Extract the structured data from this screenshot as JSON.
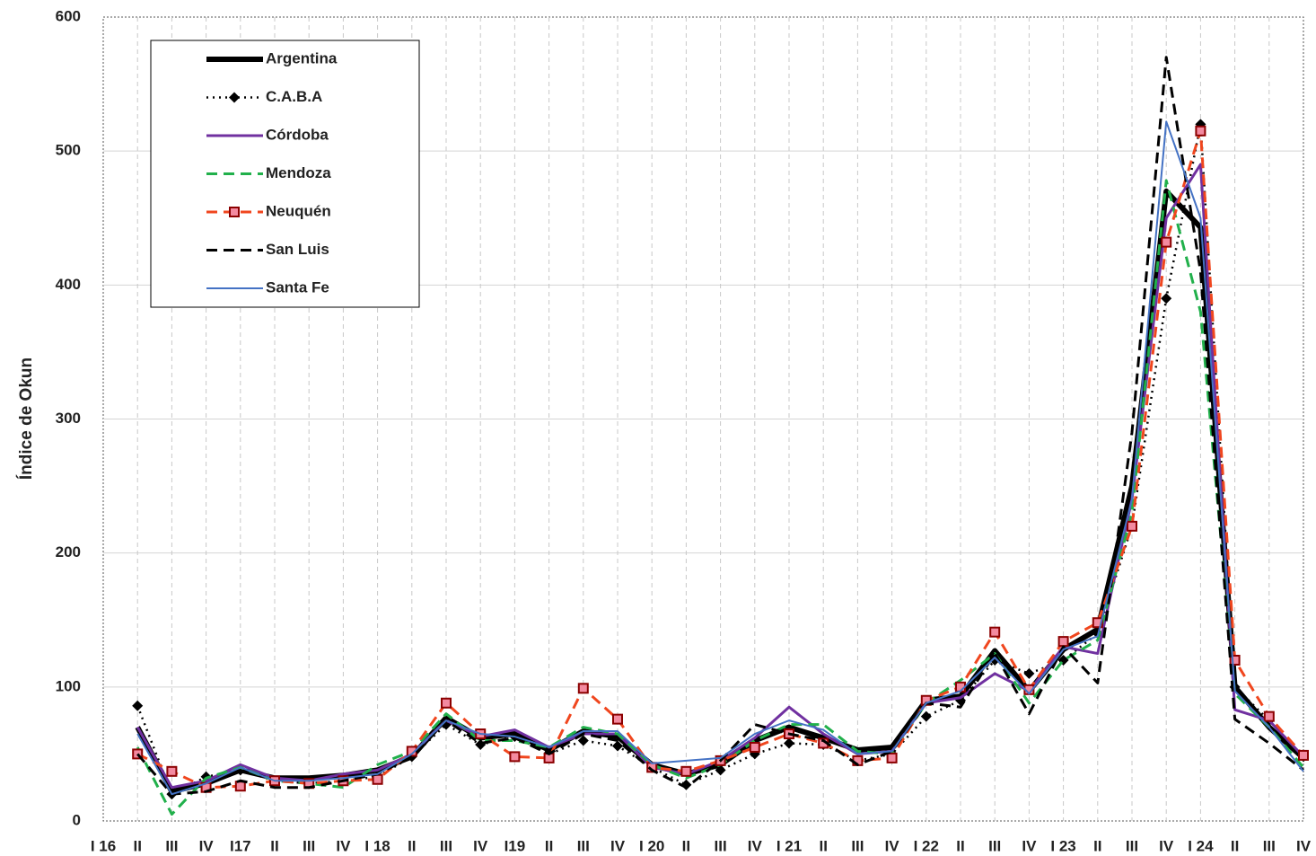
{
  "chart_data": {
    "type": "line",
    "y_label": "Índice de Okun",
    "categories": [
      "I 16",
      "II",
      "III",
      "IV",
      "I17",
      "II",
      "III",
      "IV",
      "I 18",
      "II",
      "III",
      "IV",
      "I19",
      "II",
      "III",
      "IV",
      "I 20",
      "II",
      "III",
      "IV",
      "I 21",
      "II",
      "III",
      "IV",
      "I 22",
      "II",
      "III",
      "IV",
      "I 23",
      "II",
      "III",
      "IV",
      "I 24",
      "II",
      "III",
      "IV"
    ],
    "ylim": [
      0,
      600
    ],
    "yticks": [
      0,
      100,
      200,
      300,
      400,
      500,
      600
    ],
    "grid": true,
    "legend": "top-left",
    "series": [
      {
        "name": "Argentina",
        "color": "#000000",
        "line_style": "solid",
        "line_width": 6,
        "marker": "none",
        "values": [
          null,
          70,
          22,
          28,
          38,
          32,
          32,
          34,
          38,
          48,
          77,
          62,
          65,
          53,
          67,
          63,
          42,
          35,
          42,
          60,
          70,
          62,
          53,
          55,
          90,
          93,
          127,
          97,
          128,
          143,
          250,
          470,
          443,
          100,
          70,
          47
        ]
      },
      {
        "name": "C.A.B.A",
        "color": "#000000",
        "line_style": "dotted",
        "line_width": 2.5,
        "marker": "diamond",
        "values": [
          null,
          86,
          20,
          33,
          38,
          30,
          28,
          30,
          33,
          48,
          72,
          57,
          63,
          50,
          60,
          56,
          40,
          27,
          38,
          50,
          58,
          57,
          45,
          50,
          78,
          90,
          120,
          110,
          120,
          140,
          220,
          390,
          520,
          100,
          75,
          48
        ]
      },
      {
        "name": "Córdoba",
        "color": "#7030a0",
        "line_style": "solid",
        "line_width": 3,
        "marker": "none",
        "values": [
          null,
          70,
          25,
          30,
          42,
          32,
          30,
          35,
          38,
          50,
          75,
          63,
          68,
          55,
          65,
          65,
          40,
          35,
          45,
          62,
          85,
          65,
          50,
          52,
          88,
          92,
          110,
          97,
          130,
          125,
          240,
          450,
          490,
          83,
          75,
          48
        ]
      },
      {
        "name": "Mendoza",
        "color": "#21b04b",
        "line_style": "dashed",
        "line_width": 3,
        "marker": "none",
        "values": [
          null,
          55,
          5,
          32,
          40,
          30,
          28,
          25,
          42,
          52,
          80,
          60,
          60,
          55,
          70,
          65,
          42,
          32,
          42,
          60,
          72,
          72,
          52,
          50,
          88,
          105,
          125,
          88,
          120,
          135,
          230,
          478,
          380,
          95,
          70,
          40
        ]
      },
      {
        "name": "Neuquén",
        "color": "#f0461e",
        "line_style": "dashed",
        "line_width": 3,
        "marker": "square",
        "values": [
          null,
          50,
          37,
          25,
          26,
          30,
          28,
          30,
          31,
          52,
          88,
          65,
          48,
          47,
          99,
          76,
          40,
          37,
          45,
          55,
          65,
          58,
          45,
          47,
          90,
          100,
          141,
          98,
          134,
          148,
          220,
          432,
          515,
          120,
          78,
          49
        ]
      },
      {
        "name": "San Luis",
        "color": "#000000",
        "line_style": "dashed",
        "line_width": 3,
        "marker": "none",
        "values": [
          null,
          50,
          20,
          22,
          30,
          25,
          25,
          30,
          35,
          48,
          75,
          58,
          62,
          50,
          65,
          60,
          38,
          25,
          45,
          72,
          65,
          60,
          42,
          52,
          88,
          85,
          125,
          80,
          130,
          103,
          290,
          570,
          410,
          76,
          58,
          38
        ]
      },
      {
        "name": "Santa Fe",
        "color": "#4472c4",
        "line_style": "solid",
        "line_width": 2,
        "marker": "none",
        "values": [
          null,
          65,
          20,
          28,
          40,
          30,
          30,
          32,
          35,
          50,
          75,
          65,
          63,
          55,
          67,
          67,
          43,
          45,
          47,
          65,
          75,
          68,
          50,
          52,
          88,
          97,
          122,
          95,
          128,
          138,
          240,
          522,
          450,
          97,
          70,
          37
        ]
      }
    ]
  }
}
